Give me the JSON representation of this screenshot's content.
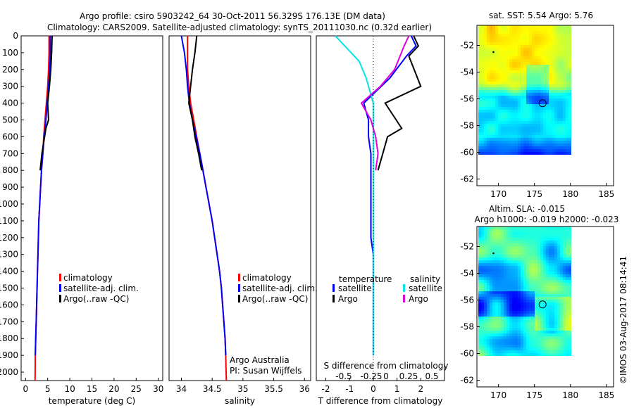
{
  "header": {
    "title1": "Argo profile: csiro 5903242_64 30-Oct-2011 56.329S 176.13E (DM data)",
    "title2": "Climatology: CARS2009. Satellite-adjusted climatology: synTS_20111030.nc (0.32d earlier)"
  },
  "watermark": "©IMOS 03-Aug-2017 08:14:41",
  "colors": {
    "climatology": "#ff0000",
    "satellite": "#0000ff",
    "argo": "#000000",
    "sal_satellite": "#00e5e5",
    "sal_argo": "#e000e0"
  },
  "chart_data": [
    {
      "type": "line",
      "panel": "temperature",
      "xlabel": "temperature (deg C)",
      "ylabel": "",
      "xlim": [
        -1,
        31
      ],
      "ylim": [
        2050,
        0
      ],
      "xticks": [
        0,
        5,
        10,
        15,
        20,
        25,
        30
      ],
      "yticks": [
        0,
        100,
        200,
        300,
        400,
        500,
        600,
        700,
        800,
        900,
        1000,
        1100,
        1200,
        1300,
        1400,
        1500,
        1600,
        1700,
        1800,
        1900,
        2000
      ],
      "legend": [
        "climatology",
        "satellite-adj. clim.",
        "Argo(..raw -QC)"
      ],
      "series": [
        {
          "name": "climatology",
          "color": "#ff0000",
          "x": [
            5.3,
            5.3,
            5.2,
            5.0,
            4.7,
            4.4,
            4.1,
            3.9,
            3.6,
            3.4,
            3.2,
            3.0,
            2.9,
            2.8,
            2.7,
            2.6,
            2.5,
            2.4,
            2.3,
            2.2,
            2.15
          ],
          "y": [
            0,
            100,
            200,
            300,
            400,
            500,
            600,
            700,
            800,
            900,
            1000,
            1100,
            1200,
            1300,
            1400,
            1500,
            1600,
            1700,
            1800,
            1900,
            2050
          ]
        },
        {
          "name": "satellite-adj. clim.",
          "color": "#0000ff",
          "x": [
            5.6,
            5.6,
            5.5,
            5.2,
            4.9,
            4.6,
            4.2,
            3.9,
            3.6,
            3.4,
            3.2,
            3.0,
            2.9,
            2.8,
            2.7,
            2.6,
            2.5,
            2.4,
            2.3,
            2.2
          ],
          "y": [
            0,
            100,
            200,
            300,
            400,
            500,
            600,
            700,
            800,
            900,
            1000,
            1100,
            1200,
            1300,
            1400,
            1500,
            1600,
            1700,
            1800,
            1900
          ]
        },
        {
          "name": "Argo(..raw -QC)",
          "color": "#000000",
          "x": [
            6.0,
            5.9,
            5.7,
            5.4,
            5.0,
            5.2,
            4.6,
            4.3,
            4.0,
            3.7,
            3.5,
            3.3
          ],
          "y": [
            0,
            100,
            200,
            300,
            400,
            500,
            550,
            600,
            650,
            700,
            750,
            800
          ]
        }
      ]
    },
    {
      "type": "line",
      "panel": "salinity",
      "xlabel": "salinity",
      "ylabel": "",
      "xlim": [
        33.8,
        36.1
      ],
      "ylim": [
        2050,
        0
      ],
      "xticks": [
        34,
        34.5,
        35,
        35.5,
        36
      ],
      "legend": [
        "climatology",
        "satellite-adj. clim.",
        "Argo(..raw -QC)"
      ],
      "annotations": [
        "Argo Australia",
        "PI: Susan Wijffels"
      ],
      "series": [
        {
          "name": "climatology",
          "color": "#ff0000",
          "x": [
            34.1,
            34.1,
            34.1,
            34.12,
            34.15,
            34.2,
            34.25,
            34.3,
            34.35,
            34.4,
            34.45,
            34.5,
            34.54,
            34.58,
            34.62,
            34.65,
            34.67,
            34.69,
            34.71,
            34.72,
            34.73
          ],
          "y": [
            0,
            100,
            200,
            300,
            400,
            500,
            600,
            700,
            800,
            900,
            1000,
            1100,
            1200,
            1300,
            1400,
            1500,
            1600,
            1700,
            1800,
            1900,
            2050
          ]
        },
        {
          "name": "satellite-adj. clim.",
          "color": "#0000ff",
          "x": [
            34.0,
            34.05,
            34.08,
            34.1,
            34.13,
            34.18,
            34.24,
            34.3,
            34.35,
            34.4,
            34.45,
            34.5,
            34.54,
            34.58,
            34.62,
            34.65,
            34.67,
            34.69,
            34.71,
            34.72
          ],
          "y": [
            0,
            100,
            200,
            300,
            400,
            500,
            600,
            700,
            800,
            900,
            1000,
            1100,
            1200,
            1300,
            1400,
            1500,
            1600,
            1700,
            1800,
            1900
          ]
        },
        {
          "name": "Argo(..raw -QC)",
          "color": "#000000",
          "x": [
            34.25,
            34.22,
            34.18,
            34.15,
            34.12,
            34.18,
            34.22,
            34.28,
            34.33
          ],
          "y": [
            0,
            100,
            200,
            300,
            400,
            500,
            600,
            700,
            800
          ]
        }
      ]
    },
    {
      "type": "line",
      "panel": "difference",
      "xlabel": "T difference from climatology",
      "xlabel_top": "S difference from climatology",
      "xlim": [
        -2.4,
        3.0
      ],
      "ylim": [
        2050,
        0
      ],
      "xticks": [
        -2,
        -1,
        0,
        1,
        2
      ],
      "xticks_top": [
        "-0.5",
        "-0.25",
        "0",
        "0.25",
        "0.5"
      ],
      "legend_titles": [
        "temperature",
        "salinity"
      ],
      "legend": [
        "satellite",
        "Argo",
        "satellite",
        "Argo"
      ],
      "series": [
        {
          "name": "satellite",
          "color": "#0000ff",
          "x": [
            1.6,
            1.8,
            1.4,
            0.7,
            -0.4,
            -0.2,
            -0.2,
            -0.1,
            -0.1,
            -0.1,
            -0.1,
            -0.1,
            -0.1,
            0,
            0,
            0,
            0,
            0,
            0,
            0
          ],
          "y": [
            0,
            60,
            120,
            250,
            400,
            500,
            600,
            700,
            800,
            900,
            1000,
            1100,
            1200,
            1300,
            1400,
            1500,
            1600,
            1700,
            1800,
            1900
          ]
        },
        {
          "name": "Argo",
          "color": "#000000",
          "x": [
            1.7,
            1.9,
            1.5,
            2.0,
            0.5,
            1.2,
            0.6,
            0.4,
            0.2
          ],
          "y": [
            0,
            60,
            120,
            300,
            400,
            550,
            600,
            700,
            800
          ]
        },
        {
          "name": "satellite",
          "color": "#00e5e5",
          "x": [
            -1.6,
            -1.2,
            -0.6,
            -0.3,
            0,
            0,
            0,
            0,
            0,
            0,
            0,
            0,
            0,
            0,
            0,
            0,
            0,
            0,
            0,
            0
          ],
          "y": [
            0,
            60,
            150,
            250,
            400,
            500,
            600,
            700,
            800,
            900,
            1000,
            1100,
            1200,
            1300,
            1400,
            1500,
            1600,
            1700,
            1800,
            1900
          ]
        },
        {
          "name": "Argo",
          "color": "#e000e0",
          "x": [
            1.5,
            1.3,
            0.9,
            0.3,
            -0.5,
            -0.1,
            0.1,
            0.2,
            0.1
          ],
          "y": [
            0,
            60,
            200,
            300,
            400,
            500,
            600,
            700,
            800
          ]
        }
      ]
    },
    {
      "type": "heatmap",
      "panel": "sst_map",
      "title": "sat. SST: 5.54  Argo: 5.76",
      "xlim": [
        167,
        186
      ],
      "ylim": [
        -62.5,
        -50.5
      ],
      "xticks": [
        170,
        175,
        180,
        185
      ],
      "yticks": [
        -52,
        -54,
        -56,
        -58,
        -60,
        -62
      ],
      "float_position": {
        "lon": 176.13,
        "lat": -56.33
      }
    },
    {
      "type": "heatmap",
      "panel": "sla_map",
      "title": "Altim. SLA: -0.015",
      "subtitle": "Argo h1000: -0.019 h2000: -0.023",
      "xlim": [
        167,
        186
      ],
      "ylim": [
        -62.5,
        -50.5
      ],
      "xticks": [
        170,
        175,
        180,
        185
      ],
      "yticks": [
        -52,
        -54,
        -56,
        -58,
        -60,
        -62
      ],
      "float_position": {
        "lon": 176.13,
        "lat": -56.33
      }
    }
  ]
}
